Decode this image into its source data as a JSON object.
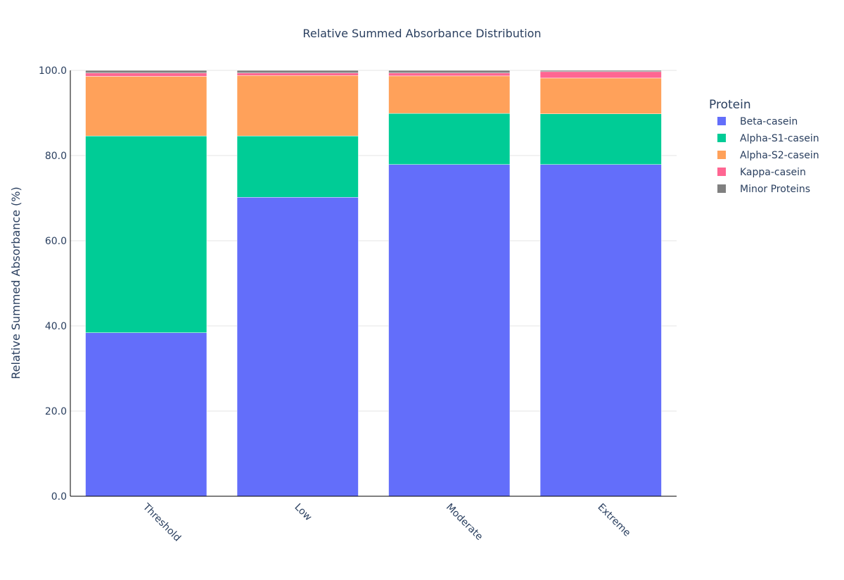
{
  "chart_data": {
    "type": "bar",
    "barmode": "stack",
    "title": "Relative Summed Absorbance Distribution",
    "xlabel": "",
    "ylabel": "Relative Summed Absorbance (%)",
    "ylim": [
      0,
      100
    ],
    "yticks": [
      "0.0",
      "20.0",
      "40.0",
      "60.0",
      "80.0",
      "100.0"
    ],
    "grid": true,
    "categories": [
      "Threshold",
      "Low",
      "Moderate",
      "Extreme"
    ],
    "legend": {
      "title": "Protein",
      "placement": "right"
    },
    "series": [
      {
        "name": "Beta-casein",
        "color": "#636efa",
        "values": [
          38.4,
          70.2,
          77.9,
          77.9
        ]
      },
      {
        "name": "Alpha-S1-casein",
        "color": "#00cc96",
        "values": [
          46.2,
          14.4,
          12.0,
          11.9
        ]
      },
      {
        "name": "Alpha-S2-casein",
        "color": "#ffa15a",
        "values": [
          14.0,
          14.2,
          8.8,
          8.4
        ]
      },
      {
        "name": "Kappa-casein",
        "color": "#ff6692",
        "values": [
          0.8,
          0.6,
          0.7,
          1.5
        ]
      },
      {
        "name": "Minor Proteins",
        "color": "#808080",
        "values": [
          0.6,
          0.6,
          0.6,
          0.3
        ]
      }
    ]
  }
}
